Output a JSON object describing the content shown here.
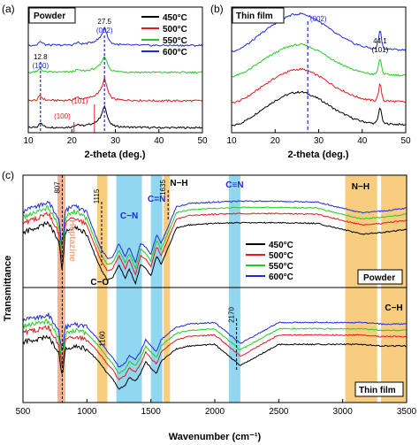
{
  "colors": {
    "s450": "#000000",
    "s500": "#e41a1c",
    "s550": "#22cc22",
    "s600": "#1f2bd6",
    "orange": "#f7c469",
    "salmon": "#f2a57a",
    "cyan": "#7fd0ee",
    "annblue": "#1f2bd6",
    "annred": "#e41a1c"
  },
  "panels": {
    "a": {
      "letter": "(a)",
      "label": "Powder"
    },
    "b": {
      "letter": "(b)",
      "label": "Thin film"
    },
    "c": {
      "letter": "(c)",
      "label_top": "Powder",
      "label_bottom": "Thin film"
    }
  },
  "chart_data": [
    {
      "type": "line",
      "panel": "a",
      "xlabel": "2-theta (deg.)",
      "ylabel": "",
      "xlim": [
        10,
        50
      ],
      "xticks": [
        "10",
        "20",
        "30",
        "40",
        "50"
      ],
      "x": [
        10,
        11,
        12,
        12.5,
        12.8,
        13.2,
        14,
        16,
        18,
        20,
        21,
        21.5,
        22,
        23,
        24,
        25,
        26,
        26.5,
        27,
        27.5,
        28,
        28.5,
        29,
        30,
        32,
        35,
        40,
        45,
        50
      ],
      "base": [
        0.04,
        0.05,
        0.06,
        0.16,
        0.18,
        0.12,
        0.06,
        0.05,
        0.05,
        0.06,
        0.12,
        0.14,
        0.1,
        0.1,
        0.13,
        0.17,
        0.25,
        0.32,
        0.46,
        0.66,
        0.45,
        0.25,
        0.14,
        0.08,
        0.06,
        0.05,
        0.04,
        0.04,
        0.04
      ],
      "series": [
        {
          "name": "450°C",
          "offset": 0.0,
          "scale": 1.0
        },
        {
          "name": "500°C",
          "offset": 0.75,
          "scale": 1.0
        },
        {
          "name": "550°C",
          "offset": 1.55,
          "scale": 0.75
        },
        {
          "name": "600°C",
          "offset": 2.3,
          "scale": 0.8
        }
      ],
      "ylim": [
        -0.1,
        3.4
      ],
      "annotations": [
        {
          "label": "12.8",
          "sub": "(100)",
          "x": 12.8,
          "color": "annblue"
        },
        {
          "label": "27.5",
          "sub": "(002)",
          "x": 27.5,
          "color": "annblue"
        },
        {
          "label": "(101)",
          "x": 21.5,
          "color": "annred"
        },
        {
          "label": "(100)",
          "x": 17.5,
          "color": "annred"
        }
      ]
    },
    {
      "type": "line",
      "panel": "b",
      "xlabel": "2-theta (deg.)",
      "ylabel": "",
      "xlim": [
        10,
        50
      ],
      "xticks": [
        "10",
        "20",
        "30",
        "40",
        "50"
      ],
      "x": [
        10,
        12,
        14,
        16,
        18,
        20,
        22,
        24,
        26,
        27,
        28,
        30,
        32,
        34,
        36,
        38,
        40,
        42,
        43,
        43.6,
        44.1,
        44.6,
        45,
        47,
        50
      ],
      "base": [
        0.08,
        0.16,
        0.3,
        0.48,
        0.66,
        0.82,
        0.96,
        1.05,
        1.08,
        1.05,
        1.0,
        0.88,
        0.72,
        0.55,
        0.42,
        0.3,
        0.22,
        0.17,
        0.16,
        0.3,
        0.7,
        0.3,
        0.16,
        0.14,
        0.12
      ],
      "series": [
        {
          "name": "450°C",
          "offset": 0.0,
          "scale": 0.9
        },
        {
          "name": "500°C",
          "offset": 0.6,
          "scale": 0.9
        },
        {
          "name": "550°C",
          "offset": 1.3,
          "scale": 0.85
        },
        {
          "name": "600°C",
          "offset": 1.95,
          "scale": 1.0
        }
      ],
      "ylim": [
        -0.1,
        3.2
      ],
      "annotations": [
        {
          "label": "(002)",
          "x": 27.5,
          "color": "annblue"
        },
        {
          "label": "44.1",
          "sub": "(101)",
          "x": 44.1,
          "color": "s450"
        }
      ]
    },
    {
      "type": "line",
      "panel": "c",
      "xlabel": "Wavenumber (cm⁻¹)",
      "ylabel": "Transmittance",
      "xlim": [
        500,
        3500
      ],
      "xticks": [
        "500",
        "1000",
        "1500",
        "2000",
        "2500",
        "3000",
        "3500"
      ],
      "legend": [
        "450°C",
        "500°C",
        "550°C",
        "600°C"
      ],
      "bands": [
        {
          "from": 770,
          "to": 830,
          "color": "salmon"
        },
        {
          "from": 1080,
          "to": 1160,
          "color": "orange"
        },
        {
          "from": 1230,
          "to": 1430,
          "color": "cyan"
        },
        {
          "from": 1500,
          "to": 1590,
          "color": "cyan"
        },
        {
          "from": 1600,
          "to": 1650,
          "color": "orange"
        },
        {
          "from": 2110,
          "to": 2200,
          "color": "cyan"
        },
        {
          "from": 3020,
          "to": 3270,
          "color": "orange"
        },
        {
          "from": 3300,
          "to": 3500,
          "color": "orange"
        }
      ],
      "peak_labels": [
        {
          "label": "807",
          "x": 807
        },
        {
          "label": "1115",
          "x": 1115
        },
        {
          "label": "1635",
          "x": 1635
        },
        {
          "label": "1160",
          "x": 1160
        },
        {
          "label": "2170",
          "x": 2170
        }
      ],
      "group_labels": [
        {
          "label": "C−N",
          "x": 1330,
          "color": "annblue"
        },
        {
          "label": "C=N",
          "x": 1545,
          "color": "annblue"
        },
        {
          "label": "N−H",
          "x": 1720,
          "color": "s450"
        },
        {
          "label": "C≡N",
          "x": 2155,
          "color": "annblue"
        },
        {
          "label": "N−H",
          "x": 3140,
          "color": "s450"
        },
        {
          "label": "C−O",
          "x": 1070,
          "color": "s450"
        },
        {
          "label": "C−H",
          "x": 3400,
          "color": "s450"
        },
        {
          "label": "Heptazine",
          "x": 810,
          "color": "salmon"
        }
      ],
      "x": [
        500,
        600,
        700,
        780,
        807,
        830,
        900,
        1000,
        1080,
        1115,
        1160,
        1200,
        1250,
        1300,
        1330,
        1380,
        1420,
        1460,
        1500,
        1545,
        1580,
        1635,
        1700,
        1800,
        2000,
        2200,
        2500,
        2800,
        3000,
        3150,
        3300,
        3500
      ],
      "top_base": [
        0.72,
        0.78,
        0.85,
        0.6,
        0.2,
        0.72,
        0.8,
        0.7,
        0.35,
        0.22,
        0.1,
        0.12,
        0.3,
        0.12,
        0.25,
        0.05,
        0.3,
        0.25,
        0.15,
        0.42,
        0.3,
        0.52,
        0.78,
        0.82,
        0.84,
        0.85,
        0.85,
        0.84,
        0.76,
        0.7,
        0.72,
        0.76
      ],
      "bottom_base": [
        0.75,
        0.78,
        0.82,
        0.6,
        0.3,
        0.65,
        0.7,
        0.66,
        0.52,
        0.45,
        0.35,
        0.28,
        0.15,
        0.2,
        0.3,
        0.25,
        0.35,
        0.5,
        0.42,
        0.35,
        0.5,
        0.58,
        0.66,
        0.7,
        0.72,
        0.45,
        0.72,
        0.72,
        0.72,
        0.72,
        0.7,
        0.7
      ],
      "series": [
        {
          "name": "450°C",
          "offset": 0.0
        },
        {
          "name": "500°C",
          "offset": 0.12
        },
        {
          "name": "550°C",
          "offset": 0.2
        },
        {
          "name": "600°C",
          "offset": 0.28
        }
      ]
    }
  ]
}
